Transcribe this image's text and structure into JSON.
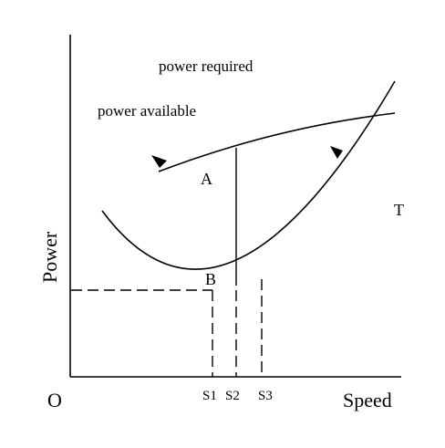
{
  "diagram": {
    "curve_labels": {
      "power_required": "power required",
      "power_available": "power available"
    },
    "axes": {
      "y_label": "Power",
      "x_label": "Speed",
      "origin": "O"
    },
    "points": {
      "a": "A",
      "b": "B",
      "t": "T"
    },
    "speeds": [
      "S1",
      "S2",
      "S3"
    ],
    "colors": {
      "ink": "#000000",
      "background": "#ffffff"
    }
  }
}
